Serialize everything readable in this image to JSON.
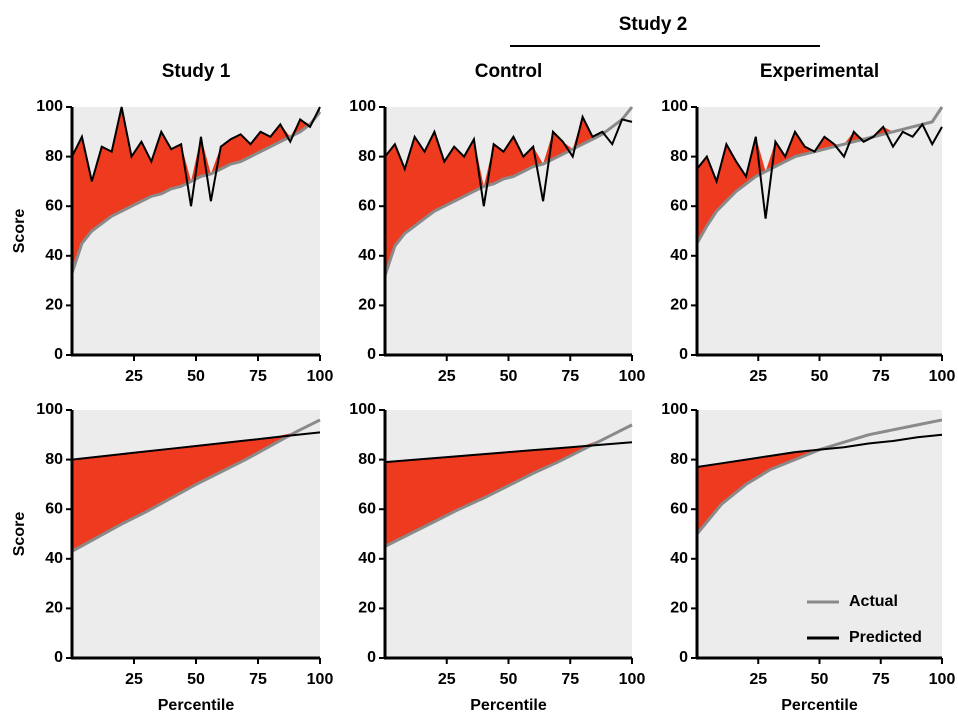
{
  "group_label": "Study 2",
  "chart_data": [
    {
      "type": "line",
      "title": "Study 1",
      "ylabel": "Score",
      "x": [
        0,
        4,
        8,
        12,
        16,
        20,
        24,
        28,
        32,
        36,
        40,
        44,
        48,
        52,
        56,
        60,
        64,
        68,
        72,
        76,
        80,
        84,
        88,
        92,
        96,
        100
      ],
      "series": [
        {
          "color": "#8a8a8a",
          "values": [
            33,
            45,
            50,
            53,
            56,
            58,
            60,
            62,
            64,
            65,
            67,
            68,
            70,
            72,
            73,
            75,
            77,
            78,
            80,
            82,
            84,
            86,
            88,
            90,
            93,
            98
          ]
        },
        {
          "color": "#000000",
          "values": [
            80,
            88,
            70,
            84,
            82,
            100,
            80,
            86,
            78,
            90,
            83,
            85,
            60,
            88,
            62,
            84,
            87,
            89,
            85,
            90,
            88,
            93,
            86,
            95,
            92,
            100
          ]
        }
      ],
      "xlim": [
        0,
        100
      ],
      "ylim": [
        0,
        100
      ],
      "xticks": [
        25,
        50,
        75,
        100
      ],
      "yticks": [
        0,
        20,
        40,
        60,
        80,
        100
      ]
    },
    {
      "type": "line",
      "title": "Control",
      "x": [
        0,
        4,
        8,
        12,
        16,
        20,
        24,
        28,
        32,
        36,
        40,
        44,
        48,
        52,
        56,
        60,
        64,
        68,
        72,
        76,
        80,
        84,
        88,
        92,
        96,
        100
      ],
      "series": [
        {
          "color": "#8a8a8a",
          "values": [
            32,
            44,
            49,
            52,
            55,
            58,
            60,
            62,
            64,
            66,
            68,
            69,
            71,
            72,
            74,
            76,
            77,
            79,
            81,
            83,
            85,
            87,
            89,
            92,
            95,
            100
          ]
        },
        {
          "color": "#000000",
          "values": [
            80,
            85,
            75,
            88,
            82,
            90,
            78,
            84,
            80,
            87,
            60,
            85,
            82,
            88,
            80,
            84,
            62,
            90,
            86,
            80,
            96,
            88,
            90,
            85,
            95,
            94
          ]
        }
      ],
      "xlim": [
        0,
        100
      ],
      "ylim": [
        0,
        100
      ],
      "xticks": [
        25,
        50,
        75,
        100
      ],
      "yticks": [
        0,
        20,
        40,
        60,
        80,
        100
      ]
    },
    {
      "type": "line",
      "title": "Experimental",
      "x": [
        0,
        4,
        8,
        12,
        16,
        20,
        24,
        28,
        32,
        36,
        40,
        44,
        48,
        52,
        56,
        60,
        64,
        68,
        72,
        76,
        80,
        84,
        88,
        92,
        96,
        100
      ],
      "series": [
        {
          "color": "#8a8a8a",
          "values": [
            45,
            52,
            58,
            62,
            66,
            69,
            72,
            74,
            76,
            78,
            80,
            81,
            82,
            83,
            84,
            85,
            86,
            87,
            88,
            89,
            90,
            91,
            92,
            93,
            94,
            100
          ]
        },
        {
          "color": "#000000",
          "values": [
            75,
            80,
            70,
            85,
            78,
            72,
            88,
            55,
            86,
            80,
            90,
            84,
            82,
            88,
            85,
            80,
            90,
            86,
            88,
            92,
            84,
            90,
            88,
            93,
            85,
            92
          ]
        }
      ],
      "xlim": [
        0,
        100
      ],
      "ylim": [
        0,
        100
      ],
      "xticks": [
        25,
        50,
        75,
        100
      ],
      "yticks": [
        0,
        20,
        40,
        60,
        80,
        100
      ]
    },
    {
      "type": "line",
      "ylabel": "Score",
      "xlabel": "Percentile",
      "x": [
        0,
        10,
        20,
        30,
        40,
        50,
        60,
        70,
        80,
        90,
        100
      ],
      "series": [
        {
          "color": "#8a8a8a",
          "values": [
            43,
            48.5,
            54,
            59,
            64.5,
            70,
            75,
            80,
            85.5,
            91,
            96
          ]
        },
        {
          "color": "#000000",
          "values": [
            80,
            81.1,
            82.2,
            83.3,
            84.4,
            85.5,
            86.6,
            87.7,
            88.8,
            89.9,
            91
          ]
        }
      ],
      "xlim": [
        0,
        100
      ],
      "ylim": [
        0,
        100
      ],
      "xticks": [
        25,
        50,
        75,
        100
      ],
      "yticks": [
        0,
        20,
        40,
        60,
        80,
        100
      ]
    },
    {
      "type": "line",
      "xlabel": "Percentile",
      "x": [
        0,
        10,
        20,
        30,
        40,
        50,
        60,
        70,
        80,
        90,
        100
      ],
      "series": [
        {
          "color": "#8a8a8a",
          "values": [
            45,
            50,
            55,
            60,
            64.5,
            69.5,
            74.5,
            79,
            84,
            89,
            94
          ]
        },
        {
          "color": "#000000",
          "values": [
            79,
            79.8,
            80.6,
            81.4,
            82.2,
            83,
            83.8,
            84.6,
            85.4,
            86.2,
            87
          ]
        }
      ],
      "xlim": [
        0,
        100
      ],
      "ylim": [
        0,
        100
      ],
      "xticks": [
        25,
        50,
        75,
        100
      ],
      "yticks": [
        0,
        20,
        40,
        60,
        80,
        100
      ]
    },
    {
      "type": "line",
      "xlabel": "Percentile",
      "legend": "lower right",
      "x": [
        0,
        10,
        20,
        30,
        40,
        50,
        60,
        70,
        80,
        90,
        100
      ],
      "series": [
        {
          "name": "Actual",
          "color": "#8a8a8a",
          "values": [
            50,
            62,
            70,
            76,
            80,
            84,
            87,
            90,
            92,
            94,
            96
          ]
        },
        {
          "name": "Predicted",
          "color": "#000000",
          "values": [
            77,
            78.5,
            80,
            81.5,
            83,
            84,
            85,
            86.5,
            87.5,
            89,
            90
          ]
        }
      ],
      "xlim": [
        0,
        100
      ],
      "ylim": [
        0,
        100
      ],
      "xticks": [
        25,
        50,
        75,
        100
      ],
      "yticks": [
        0,
        20,
        40,
        60,
        80,
        100
      ]
    }
  ]
}
